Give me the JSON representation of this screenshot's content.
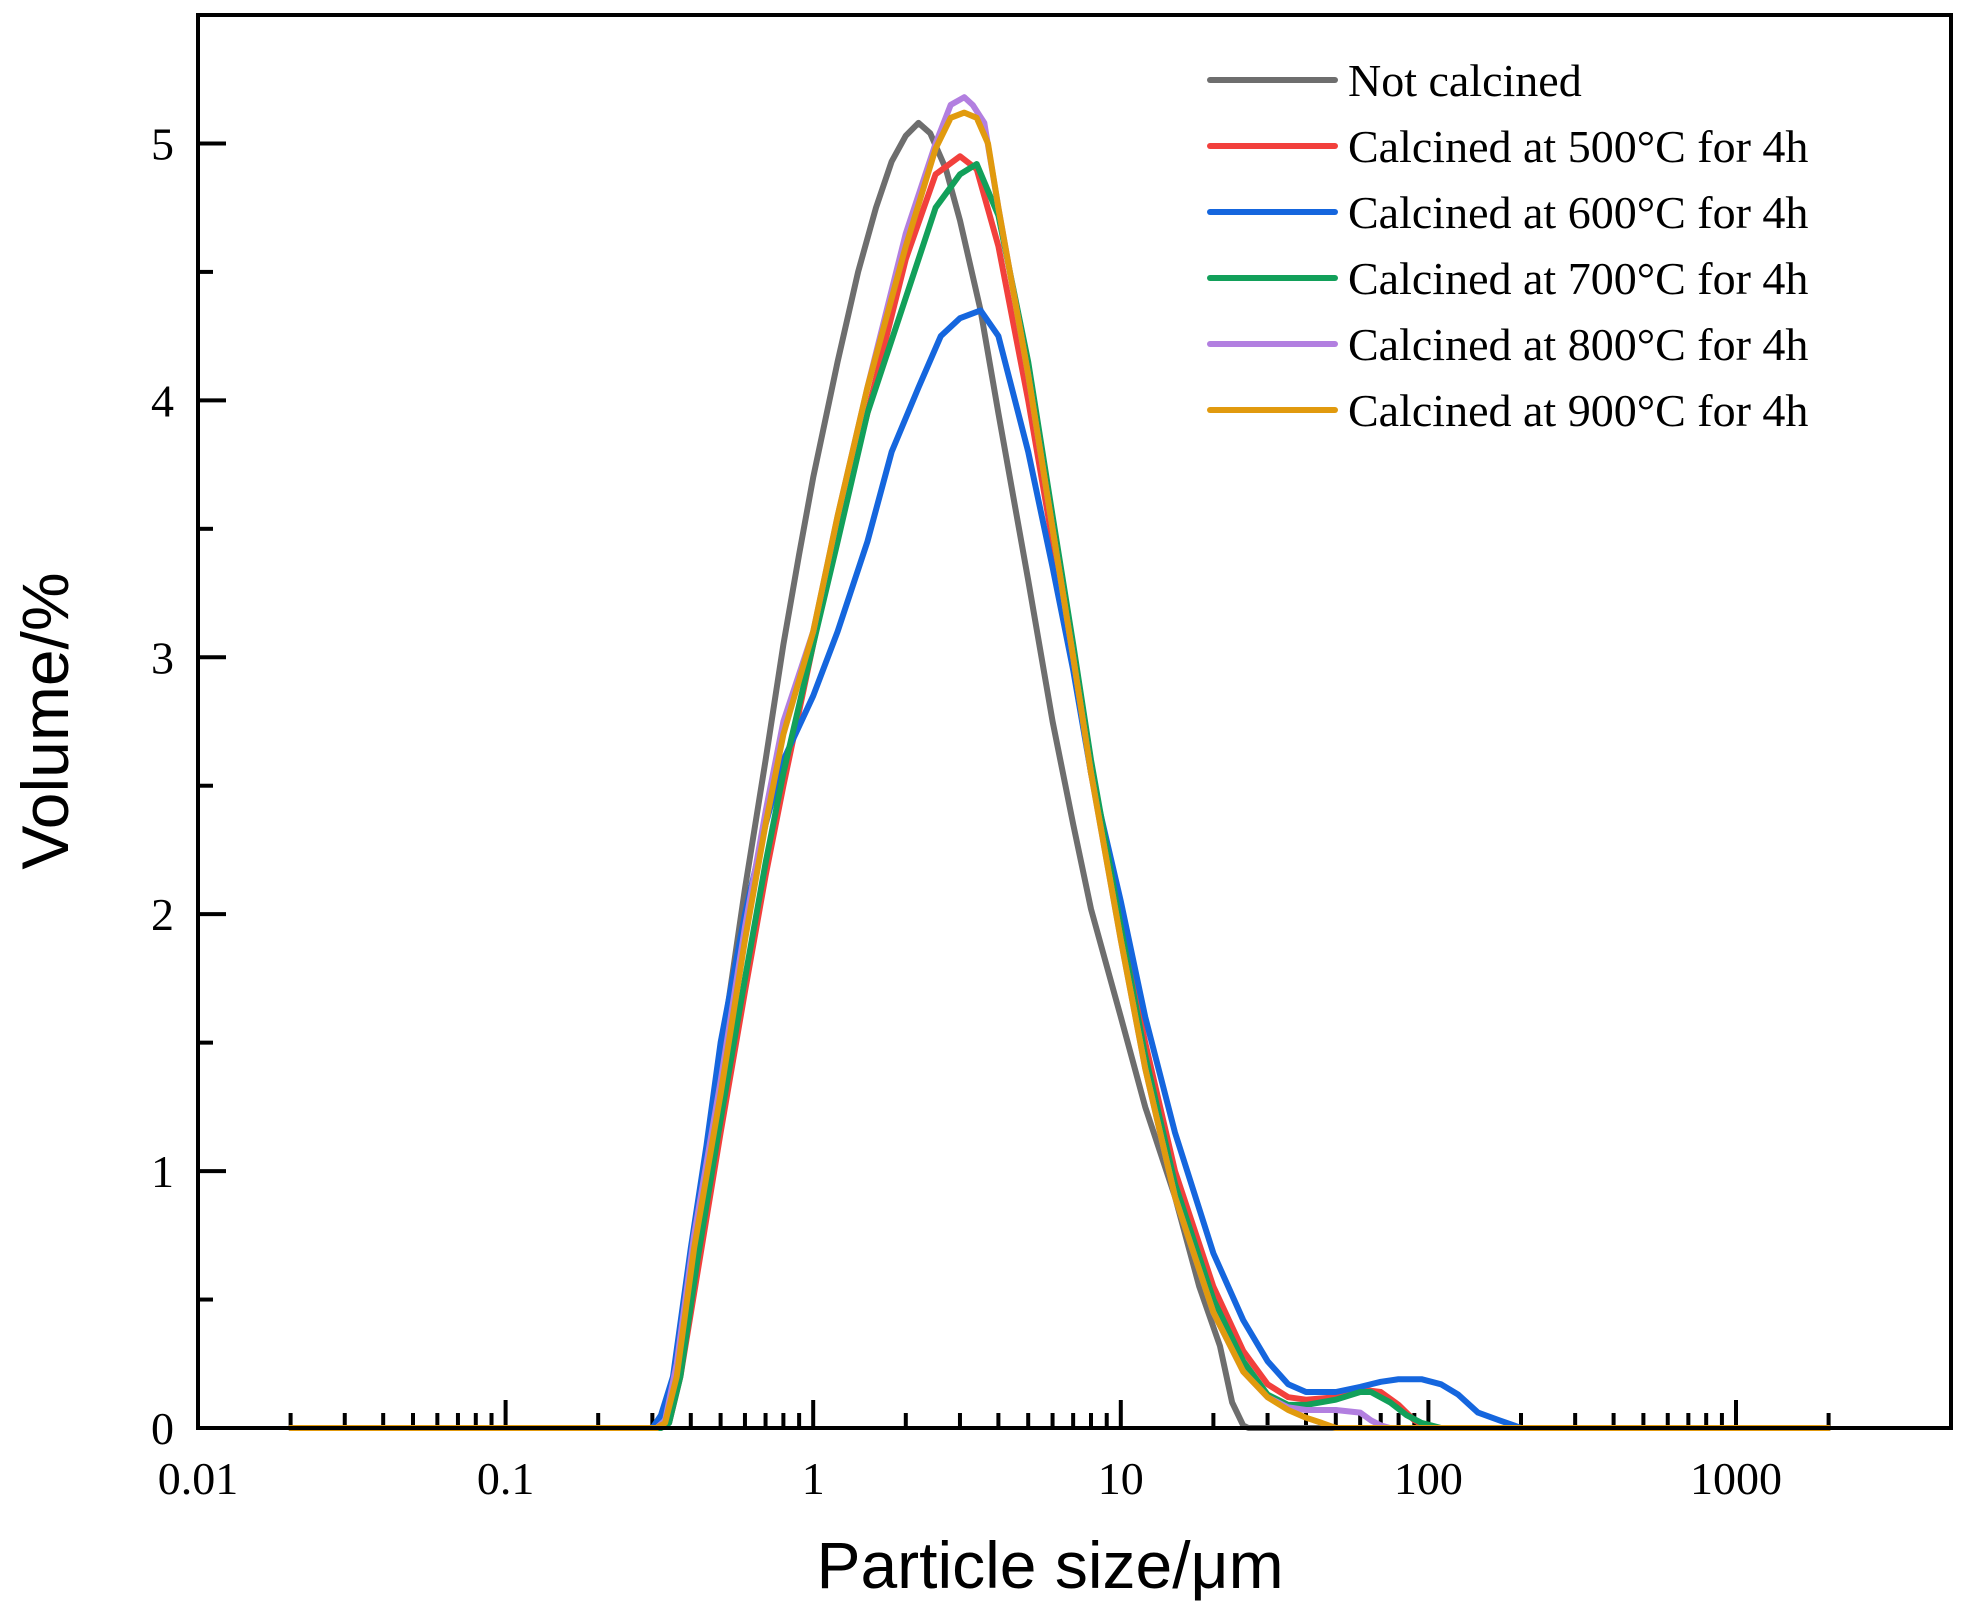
{
  "chart_data": {
    "type": "line",
    "title": "",
    "xlabel": "Particle size/μm",
    "ylabel": "Volume/%",
    "xscale": "log",
    "xlim": [
      0.01,
      5000
    ],
    "ylim": [
      0,
      5.5
    ],
    "grid": false,
    "legend_position": "top-right",
    "x_ticks": [
      {
        "value": 0.01,
        "label": "0.01"
      },
      {
        "value": 0.1,
        "label": "0.1"
      },
      {
        "value": 1,
        "label": "1"
      },
      {
        "value": 10,
        "label": "10"
      },
      {
        "value": 100,
        "label": "100"
      },
      {
        "value": 1000,
        "label": "1000"
      }
    ],
    "y_ticks": [
      {
        "value": 0,
        "label": "0"
      },
      {
        "value": 1,
        "label": "1"
      },
      {
        "value": 2,
        "label": "2"
      },
      {
        "value": 3,
        "label": "3"
      },
      {
        "value": 4,
        "label": "4"
      },
      {
        "value": 5,
        "label": "5"
      }
    ],
    "series": [
      {
        "name": "Not calcined",
        "color": "#6e6e6e",
        "points": [
          [
            0.02,
            0
          ],
          [
            0.3,
            0
          ],
          [
            0.33,
            0.02
          ],
          [
            0.36,
            0.25
          ],
          [
            0.4,
            0.6
          ],
          [
            0.45,
            1.05
          ],
          [
            0.5,
            1.45
          ],
          [
            0.6,
            2.1
          ],
          [
            0.7,
            2.6
          ],
          [
            0.8,
            3.05
          ],
          [
            0.9,
            3.4
          ],
          [
            1.0,
            3.7
          ],
          [
            1.2,
            4.15
          ],
          [
            1.4,
            4.5
          ],
          [
            1.6,
            4.75
          ],
          [
            1.8,
            4.93
          ],
          [
            2.0,
            5.03
          ],
          [
            2.2,
            5.08
          ],
          [
            2.4,
            5.04
          ],
          [
            2.7,
            4.9
          ],
          [
            3.0,
            4.7
          ],
          [
            3.5,
            4.35
          ],
          [
            4.0,
            3.95
          ],
          [
            5.0,
            3.3
          ],
          [
            6.0,
            2.75
          ],
          [
            7.0,
            2.35
          ],
          [
            8.0,
            2.02
          ],
          [
            10.0,
            1.6
          ],
          [
            12.0,
            1.25
          ],
          [
            15.0,
            0.9
          ],
          [
            18.0,
            0.55
          ],
          [
            21.0,
            0.32
          ],
          [
            23.0,
            0.1
          ],
          [
            25.0,
            0.01
          ],
          [
            26.0,
            0
          ],
          [
            2000,
            0
          ]
        ]
      },
      {
        "name": "Calcined at 500°C for 4h",
        "color": "#f2403c",
        "points": [
          [
            0.02,
            0
          ],
          [
            0.32,
            0
          ],
          [
            0.34,
            0.02
          ],
          [
            0.37,
            0.2
          ],
          [
            0.42,
            0.6
          ],
          [
            0.5,
            1.15
          ],
          [
            0.6,
            1.7
          ],
          [
            0.7,
            2.15
          ],
          [
            0.8,
            2.5
          ],
          [
            1.0,
            3.05
          ],
          [
            1.2,
            3.5
          ],
          [
            1.5,
            3.95
          ],
          [
            2.0,
            4.55
          ],
          [
            2.5,
            4.88
          ],
          [
            3.0,
            4.95
          ],
          [
            3.4,
            4.9
          ],
          [
            4.0,
            4.6
          ],
          [
            5.0,
            4.0
          ],
          [
            6.0,
            3.45
          ],
          [
            7.0,
            3.0
          ],
          [
            8.0,
            2.55
          ],
          [
            10.0,
            1.95
          ],
          [
            12.0,
            1.5
          ],
          [
            15.0,
            1.0
          ],
          [
            20.0,
            0.55
          ],
          [
            25.0,
            0.3
          ],
          [
            30.0,
            0.17
          ],
          [
            35.0,
            0.12
          ],
          [
            40.0,
            0.11
          ],
          [
            50.0,
            0.12
          ],
          [
            60.0,
            0.15
          ],
          [
            70.0,
            0.14
          ],
          [
            80.0,
            0.09
          ],
          [
            90.0,
            0.03
          ],
          [
            100.0,
            0
          ],
          [
            2000,
            0
          ]
        ]
      },
      {
        "name": "Calcined at 600°C for 4h",
        "color": "#1566de",
        "points": [
          [
            0.02,
            0
          ],
          [
            0.3,
            0
          ],
          [
            0.32,
            0.05
          ],
          [
            0.35,
            0.2
          ],
          [
            0.4,
            0.7
          ],
          [
            0.45,
            1.1
          ],
          [
            0.5,
            1.5
          ],
          [
            0.6,
            2.0
          ],
          [
            0.7,
            2.35
          ],
          [
            0.8,
            2.6
          ],
          [
            1.0,
            2.85
          ],
          [
            1.2,
            3.1
          ],
          [
            1.5,
            3.45
          ],
          [
            1.8,
            3.8
          ],
          [
            2.2,
            4.05
          ],
          [
            2.6,
            4.25
          ],
          [
            3.0,
            4.32
          ],
          [
            3.5,
            4.35
          ],
          [
            4.0,
            4.25
          ],
          [
            5.0,
            3.8
          ],
          [
            6.0,
            3.35
          ],
          [
            7.0,
            2.95
          ],
          [
            8.0,
            2.55
          ],
          [
            10.0,
            2.05
          ],
          [
            12.0,
            1.6
          ],
          [
            15.0,
            1.15
          ],
          [
            20.0,
            0.68
          ],
          [
            25.0,
            0.42
          ],
          [
            30.0,
            0.26
          ],
          [
            35.0,
            0.17
          ],
          [
            40.0,
            0.14
          ],
          [
            50.0,
            0.14
          ],
          [
            60.0,
            0.16
          ],
          [
            70.0,
            0.18
          ],
          [
            80.0,
            0.19
          ],
          [
            95.0,
            0.19
          ],
          [
            110.0,
            0.17
          ],
          [
            125.0,
            0.13
          ],
          [
            145.0,
            0.06
          ],
          [
            170.0,
            0.03
          ],
          [
            190.0,
            0.01
          ],
          [
            200,
            0
          ],
          [
            2000,
            0
          ]
        ]
      },
      {
        "name": "Calcined at 700°C for 4h",
        "color": "#12a05a",
        "points": [
          [
            0.02,
            0
          ],
          [
            0.32,
            0
          ],
          [
            0.34,
            0.02
          ],
          [
            0.37,
            0.2
          ],
          [
            0.42,
            0.65
          ],
          [
            0.5,
            1.2
          ],
          [
            0.6,
            1.75
          ],
          [
            0.7,
            2.2
          ],
          [
            0.8,
            2.55
          ],
          [
            1.0,
            3.05
          ],
          [
            1.2,
            3.45
          ],
          [
            1.5,
            3.95
          ],
          [
            2.0,
            4.4
          ],
          [
            2.5,
            4.75
          ],
          [
            3.0,
            4.88
          ],
          [
            3.4,
            4.92
          ],
          [
            4.0,
            4.72
          ],
          [
            5.0,
            4.15
          ],
          [
            6.0,
            3.55
          ],
          [
            7.0,
            3.05
          ],
          [
            8.0,
            2.6
          ],
          [
            10.0,
            1.95
          ],
          [
            12.0,
            1.45
          ],
          [
            15.0,
            0.95
          ],
          [
            20.0,
            0.5
          ],
          [
            25.0,
            0.26
          ],
          [
            30.0,
            0.13
          ],
          [
            35.0,
            0.09
          ],
          [
            40.0,
            0.09
          ],
          [
            50.0,
            0.11
          ],
          [
            60.0,
            0.14
          ],
          [
            65.0,
            0.14
          ],
          [
            75.0,
            0.1
          ],
          [
            85.0,
            0.05
          ],
          [
            95.0,
            0.02
          ],
          [
            110.0,
            0
          ],
          [
            2000,
            0
          ]
        ]
      },
      {
        "name": "Calcined at 800°C for 4h",
        "color": "#b27fe0",
        "points": [
          [
            0.02,
            0
          ],
          [
            0.31,
            0
          ],
          [
            0.33,
            0.03
          ],
          [
            0.36,
            0.25
          ],
          [
            0.41,
            0.75
          ],
          [
            0.5,
            1.35
          ],
          [
            0.6,
            1.95
          ],
          [
            0.7,
            2.4
          ],
          [
            0.8,
            2.75
          ],
          [
            1.0,
            3.1
          ],
          [
            1.2,
            3.55
          ],
          [
            1.5,
            4.05
          ],
          [
            2.0,
            4.65
          ],
          [
            2.5,
            5.0
          ],
          [
            2.8,
            5.15
          ],
          [
            3.1,
            5.18
          ],
          [
            3.3,
            5.15
          ],
          [
            3.6,
            5.08
          ],
          [
            4.0,
            4.75
          ],
          [
            5.0,
            4.1
          ],
          [
            6.0,
            3.5
          ],
          [
            7.0,
            3.0
          ],
          [
            8.0,
            2.55
          ],
          [
            10.0,
            1.9
          ],
          [
            12.0,
            1.4
          ],
          [
            15.0,
            0.9
          ],
          [
            20.0,
            0.45
          ],
          [
            25.0,
            0.22
          ],
          [
            30.0,
            0.12
          ],
          [
            35.0,
            0.08
          ],
          [
            40.0,
            0.07
          ],
          [
            50.0,
            0.07
          ],
          [
            60.0,
            0.06
          ],
          [
            65.0,
            0.03
          ],
          [
            70.0,
            0.01
          ],
          [
            75.0,
            0
          ],
          [
            2000,
            0
          ]
        ]
      },
      {
        "name": "Calcined at 900°C for 4h",
        "color": "#e19a0e",
        "points": [
          [
            0.02,
            0
          ],
          [
            0.31,
            0
          ],
          [
            0.33,
            0.02
          ],
          [
            0.36,
            0.2
          ],
          [
            0.41,
            0.7
          ],
          [
            0.5,
            1.3
          ],
          [
            0.6,
            1.9
          ],
          [
            0.7,
            2.35
          ],
          [
            0.8,
            2.7
          ],
          [
            1.0,
            3.1
          ],
          [
            1.2,
            3.55
          ],
          [
            1.5,
            4.05
          ],
          [
            2.0,
            4.6
          ],
          [
            2.5,
            4.98
          ],
          [
            2.8,
            5.1
          ],
          [
            3.1,
            5.12
          ],
          [
            3.4,
            5.1
          ],
          [
            3.7,
            5.0
          ],
          [
            4.0,
            4.75
          ],
          [
            5.0,
            4.1
          ],
          [
            6.0,
            3.5
          ],
          [
            7.0,
            3.0
          ],
          [
            8.0,
            2.55
          ],
          [
            10.0,
            1.9
          ],
          [
            12.0,
            1.4
          ],
          [
            15.0,
            0.9
          ],
          [
            20.0,
            0.45
          ],
          [
            25.0,
            0.22
          ],
          [
            30.0,
            0.12
          ],
          [
            35.0,
            0.07
          ],
          [
            40.0,
            0.04
          ],
          [
            45.0,
            0.02
          ],
          [
            50.0,
            0
          ],
          [
            2000,
            0
          ]
        ]
      }
    ]
  }
}
